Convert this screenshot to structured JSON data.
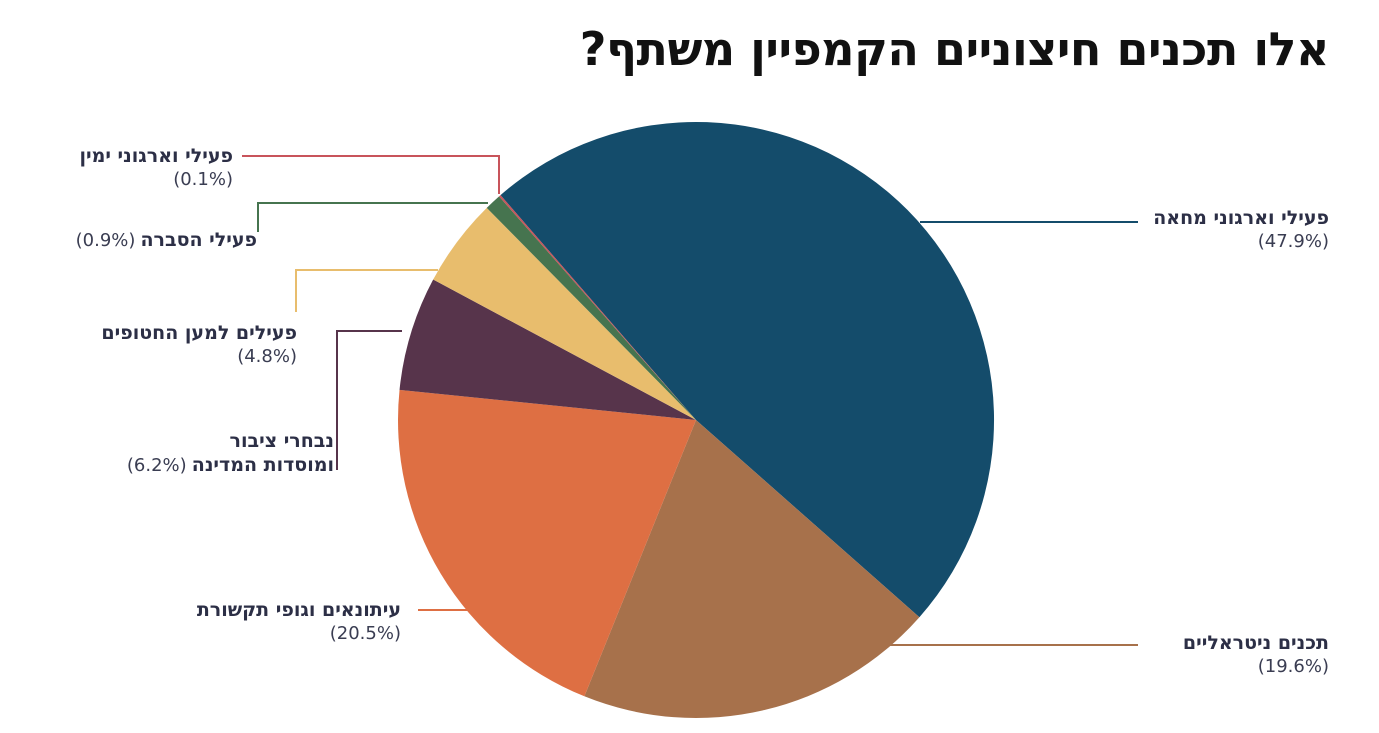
{
  "chart_data": {
    "type": "pie",
    "title": "אלו תכנים חיצוניים הקמפיין משתף?",
    "slices": [
      {
        "label": "פעילי וארגוני מחאה",
        "label2": "",
        "value": 47.9,
        "display": "(47.9%)",
        "color": "#144c6b",
        "line_color": "#144c6b"
      },
      {
        "label": "תכנים ניטראליים",
        "label2": "",
        "value": 19.6,
        "display": "(19.6%)",
        "color": "#a7714b",
        "line_color": "#a7714b"
      },
      {
        "label": "עיתונאים וגופי תקשורת",
        "label2": "",
        "value": 20.5,
        "display": "(20.5%)",
        "color": "#de6f43",
        "line_color": "#de6f43"
      },
      {
        "label": "נבחרי ציבור",
        "label2": "ומוסדות המדינה",
        "value": 6.2,
        "display": "(6.2%)",
        "color": "#57344b",
        "line_color": "#57344b"
      },
      {
        "label": "פעילים למען החטופים",
        "label2": "",
        "value": 4.8,
        "display": "(4.8%)",
        "color": "#e8bd6d",
        "line_color": "#e8bd6d"
      },
      {
        "label": "פעילי הסברה",
        "label2": "",
        "value": 0.9,
        "display": "(0.9%)",
        "color": "#46744f",
        "line_color": "#46744f"
      },
      {
        "label": "פעילי וארגוני ימין",
        "label2": "",
        "value": 0.1,
        "display": "(0.1%)",
        "color": "#c8545b",
        "line_color": "#c8545b"
      }
    ]
  }
}
